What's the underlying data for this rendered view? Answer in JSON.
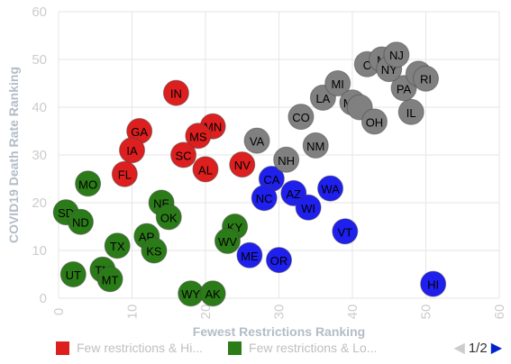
{
  "chart_data": {
    "type": "scatter",
    "title": "",
    "xlabel": "Fewest Restrictions Ranking",
    "ylabel": "COVID19 Death Rate Ranking",
    "xlim": [
      0,
      60
    ],
    "ylim": [
      0,
      60
    ],
    "x_ticks": [
      "0",
      "10",
      "20",
      "30",
      "40",
      "50",
      "60"
    ],
    "y_ticks": [
      "0",
      "10",
      "20",
      "30",
      "40",
      "50",
      "60"
    ],
    "grid": true,
    "legend_position": "bottom",
    "colors": {
      "red": "#dd1f1f",
      "green": "#2b7c18",
      "blue": "#1f1fee",
      "gray": "#808080"
    },
    "series": [
      {
        "name": "Few restrictions & Hi...",
        "color": "red",
        "points": [
          {
            "label": "IN",
            "x": 16,
            "y": 43
          },
          {
            "label": "GA",
            "x": 11,
            "y": 35
          },
          {
            "label": "MN",
            "x": 21,
            "y": 36
          },
          {
            "label": "MS",
            "x": 19,
            "y": 34
          },
          {
            "label": "IA",
            "x": 10,
            "y": 31
          },
          {
            "label": "SC",
            "x": 17,
            "y": 30
          },
          {
            "label": "FL",
            "x": 9,
            "y": 26
          },
          {
            "label": "AL",
            "x": 20,
            "y": 27
          },
          {
            "label": "NV",
            "x": 25,
            "y": 28
          }
        ]
      },
      {
        "name": "Few restrictions & Lo...",
        "color": "green",
        "points": [
          {
            "label": "MO",
            "x": 4,
            "y": 24
          },
          {
            "label": "SD",
            "x": 1,
            "y": 18
          },
          {
            "label": "ND",
            "x": 3,
            "y": 16
          },
          {
            "label": "NE",
            "x": 14,
            "y": 20
          },
          {
            "label": "OK",
            "x": 15,
            "y": 17
          },
          {
            "label": "KY",
            "x": 24,
            "y": 15
          },
          {
            "label": "AR",
            "x": 12,
            "y": 13
          },
          {
            "label": "WV",
            "x": 23,
            "y": 12
          },
          {
            "label": "TX",
            "x": 8,
            "y": 11
          },
          {
            "label": "KS",
            "x": 13,
            "y": 10
          },
          {
            "label": "UT",
            "x": 2,
            "y": 5
          },
          {
            "label": "TN",
            "x": 6,
            "y": 6
          },
          {
            "label": "MT",
            "x": 7,
            "y": 4
          },
          {
            "label": "WY",
            "x": 18,
            "y": 1
          },
          {
            "label": "AK",
            "x": 21,
            "y": 1
          }
        ]
      },
      {
        "name": "",
        "color": "blue",
        "points": [
          {
            "label": "CA",
            "x": 29,
            "y": 25
          },
          {
            "label": "NC",
            "x": 28,
            "y": 21
          },
          {
            "label": "AZ",
            "x": 32,
            "y": 22
          },
          {
            "label": "WA",
            "x": 37,
            "y": 23
          },
          {
            "label": "WI",
            "x": 34,
            "y": 19
          },
          {
            "label": "VT",
            "x": 39,
            "y": 14
          },
          {
            "label": "ME",
            "x": 26,
            "y": 9
          },
          {
            "label": "OR",
            "x": 30,
            "y": 8
          },
          {
            "label": "HI",
            "x": 51,
            "y": 3
          }
        ]
      },
      {
        "name": "",
        "color": "gray",
        "points": [
          {
            "label": "VA",
            "x": 27,
            "y": 33
          },
          {
            "label": "NH",
            "x": 31,
            "y": 29
          },
          {
            "label": "NM",
            "x": 35,
            "y": 32
          },
          {
            "label": "CO",
            "x": 33,
            "y": 38
          },
          {
            "label": "LA",
            "x": 36,
            "y": 42
          },
          {
            "label": "MI",
            "x": 38,
            "y": 45
          },
          {
            "label": "MD",
            "x": 40,
            "y": 41
          },
          {
            "label": "",
            "x": 41,
            "y": 40
          },
          {
            "label": "OH",
            "x": 43,
            "y": 37
          },
          {
            "label": "IL",
            "x": 48,
            "y": 39
          },
          {
            "label": "PA",
            "x": 47,
            "y": 44
          },
          {
            "label": "",
            "x": 49,
            "y": 47
          },
          {
            "label": "RI",
            "x": 50,
            "y": 46
          },
          {
            "label": "C",
            "x": 42,
            "y": 49
          },
          {
            "label": "M",
            "x": 44,
            "y": 50
          },
          {
            "label": "NY",
            "x": 45,
            "y": 48
          },
          {
            "label": "NJ",
            "x": 46,
            "y": 51
          }
        ]
      }
    ]
  },
  "legend": {
    "items": [
      {
        "label": "Few restrictions & Hi...",
        "color": "#dd1f1f"
      },
      {
        "label": "Few restrictions & Lo...",
        "color": "#2b7c18"
      }
    ],
    "page_text": "1/2",
    "prev_icon": "triangle-left-icon",
    "next_icon": "triangle-right-icon"
  }
}
